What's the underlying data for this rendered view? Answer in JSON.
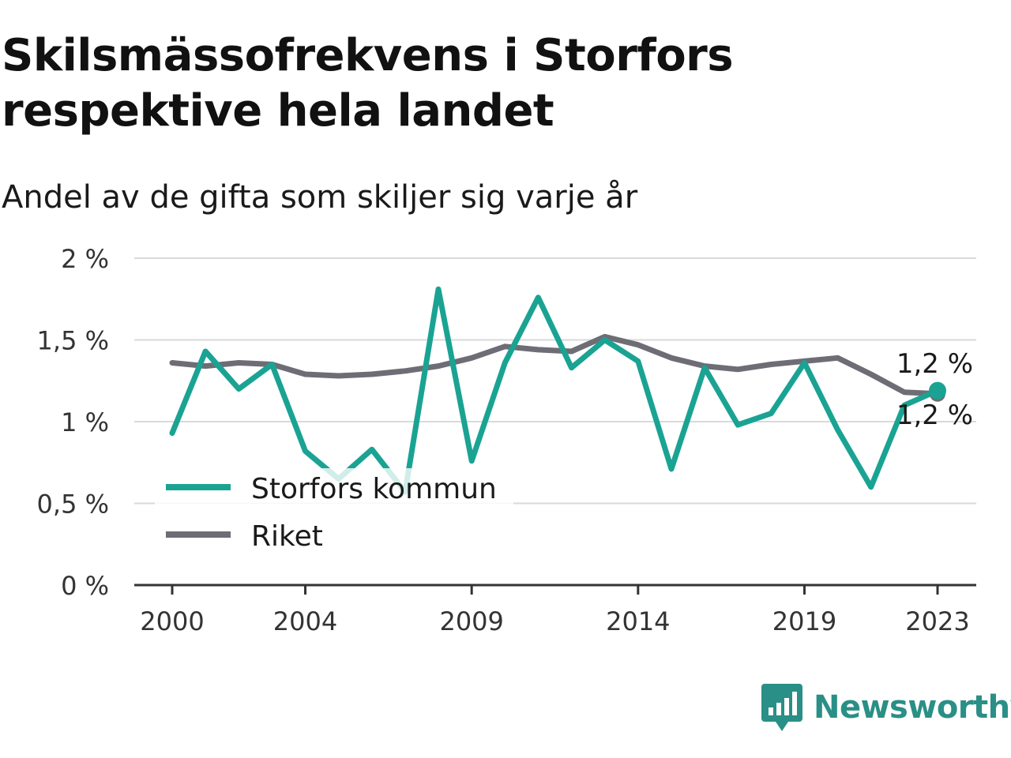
{
  "title": "Skilsmässofrekvens i Storfors respektive hela landet",
  "subtitle": "Andel av de gifta som skiljer sig varje år",
  "brand": "Newsworthy",
  "colors": {
    "storfors": "#1aa393",
    "riket": "#6e6d75",
    "grid": "#d9d9d9",
    "axis": "#333333",
    "brand": "#2a8f86"
  },
  "chart_data": {
    "type": "line",
    "x": [
      2000,
      2001,
      2002,
      2003,
      2004,
      2005,
      2006,
      2007,
      2008,
      2009,
      2010,
      2011,
      2012,
      2013,
      2014,
      2015,
      2016,
      2017,
      2018,
      2019,
      2020,
      2021,
      2022,
      2023
    ],
    "xticks": [
      2000,
      2004,
      2009,
      2014,
      2019,
      2023
    ],
    "yticks": [
      0,
      0.5,
      1,
      1.5,
      2
    ],
    "ytick_labels": [
      "0 %",
      "0,5 %",
      "1 %",
      "1,5 %",
      "2 %"
    ],
    "ylim": [
      0,
      2
    ],
    "grid": true,
    "legend_position": "bottom-left",
    "series": [
      {
        "name": "Storfors kommun",
        "color": "#1aa393",
        "values": [
          0.93,
          1.43,
          1.2,
          1.35,
          0.82,
          0.65,
          0.83,
          0.57,
          1.81,
          0.76,
          1.36,
          1.76,
          1.33,
          1.5,
          1.37,
          0.71,
          1.33,
          0.98,
          1.05,
          1.36,
          0.95,
          0.6,
          1.1,
          1.19
        ],
        "end_label": "1,2 %"
      },
      {
        "name": "Riket",
        "color": "#6e6d75",
        "values": [
          1.36,
          1.34,
          1.36,
          1.35,
          1.29,
          1.28,
          1.29,
          1.31,
          1.34,
          1.39,
          1.46,
          1.44,
          1.43,
          1.52,
          1.47,
          1.39,
          1.34,
          1.32,
          1.35,
          1.37,
          1.39,
          1.29,
          1.18,
          1.17
        ],
        "end_label": "1,2 %"
      }
    ]
  }
}
